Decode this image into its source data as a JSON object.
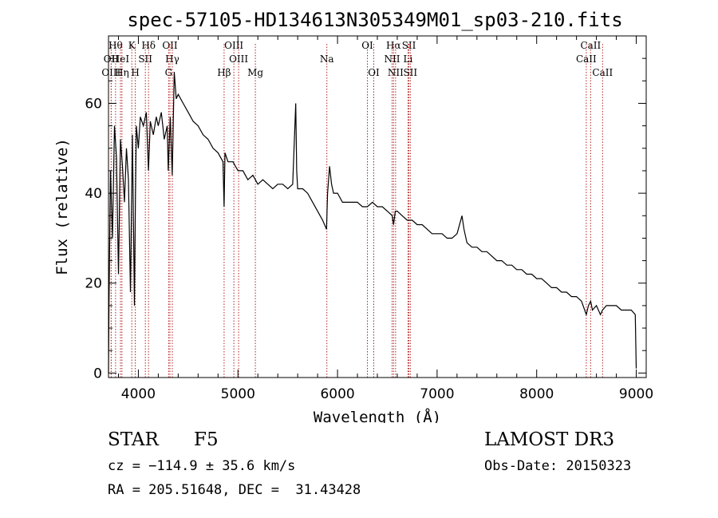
{
  "chart_data": {
    "type": "line",
    "title": "spec-57105-HD134613N305349M01_sp03-210.fits",
    "xlabel": "Wavelength (Å)",
    "ylabel": "Flux (relative)",
    "xlim": [
      3700,
      9100
    ],
    "ylim": [
      -1,
      75
    ],
    "xticks": [
      4000,
      5000,
      6000,
      7000,
      8000,
      9000
    ],
    "yticks": [
      0,
      20,
      40,
      60
    ],
    "series": [
      {
        "name": "flux",
        "x": [
          3700,
          3705,
          3720,
          3740,
          3760,
          3780,
          3800,
          3820,
          3840,
          3860,
          3880,
          3900,
          3920,
          3940,
          3960,
          3970,
          3980,
          4000,
          4020,
          4050,
          4080,
          4101,
          4120,
          4150,
          4180,
          4200,
          4230,
          4260,
          4290,
          4300,
          4320,
          4340,
          4360,
          4380,
          4400,
          4450,
          4500,
          4550,
          4600,
          4650,
          4700,
          4750,
          4800,
          4850,
          4861,
          4870,
          4900,
          4950,
          5000,
          5050,
          5100,
          5150,
          5200,
          5250,
          5300,
          5350,
          5400,
          5450,
          5500,
          5550,
          5580,
          5590,
          5600,
          5650,
          5700,
          5750,
          5800,
          5850,
          5890,
          5900,
          5920,
          5940,
          5960,
          6000,
          6050,
          6100,
          6150,
          6200,
          6250,
          6300,
          6350,
          6400,
          6450,
          6500,
          6550,
          6563,
          6580,
          6600,
          6650,
          6700,
          6750,
          6800,
          6850,
          6900,
          6950,
          7000,
          7050,
          7100,
          7150,
          7200,
          7250,
          7270,
          7300,
          7350,
          7400,
          7450,
          7500,
          7550,
          7600,
          7650,
          7700,
          7750,
          7800,
          7850,
          7900,
          7950,
          8000,
          8050,
          8100,
          8150,
          8200,
          8250,
          8300,
          8350,
          8400,
          8450,
          8498,
          8520,
          8542,
          8560,
          8600,
          8640,
          8662,
          8700,
          8750,
          8800,
          8850,
          8900,
          8950,
          8990,
          9000
        ],
        "y": [
          0,
          15,
          45,
          30,
          55,
          48,
          22,
          52,
          46,
          38,
          50,
          43,
          18,
          53,
          15,
          38,
          55,
          50,
          57,
          55,
          58,
          45,
          56,
          53,
          57,
          55,
          58,
          52,
          55,
          45,
          57,
          44,
          67,
          61,
          62,
          60,
          58,
          56,
          55,
          53,
          52,
          50,
          49,
          47,
          37,
          49,
          47,
          47,
          45,
          45,
          43,
          44,
          42,
          43,
          42,
          41,
          42,
          42,
          41,
          42,
          60,
          45,
          41,
          41,
          40,
          38,
          36,
          34,
          32,
          40,
          46,
          42,
          40,
          40,
          38,
          38,
          38,
          38,
          37,
          37,
          38,
          37,
          37,
          36,
          35,
          33,
          36,
          36,
          35,
          34,
          34,
          33,
          33,
          32,
          31,
          31,
          31,
          30,
          30,
          31,
          35,
          32,
          29,
          28,
          28,
          27,
          27,
          26,
          25,
          25,
          24,
          24,
          23,
          23,
          22,
          22,
          21,
          21,
          20,
          19,
          19,
          18,
          18,
          17,
          17,
          16,
          13,
          15,
          16,
          14,
          15,
          13,
          14,
          15,
          15,
          15,
          14,
          14,
          14,
          13,
          1
        ]
      }
    ],
    "line_marks": [
      {
        "label": "OII",
        "x": 3727,
        "row": 2
      },
      {
        "label": "OIII",
        "x": 3727,
        "row": 3
      },
      {
        "label": "Hθ",
        "x": 3771,
        "row": 1
      },
      {
        "label": "HeI",
        "x": 3820,
        "row": 2
      },
      {
        "label": "Hη",
        "x": 3835,
        "row": 3
      },
      {
        "label": "K",
        "x": 3934,
        "row": 1
      },
      {
        "label": "H",
        "x": 3969,
        "row": 3
      },
      {
        "label": "Hδ",
        "x": 4102,
        "row": 1
      },
      {
        "label": "SII",
        "x": 4070,
        "row": 2
      },
      {
        "label": "OII",
        "x": 4317,
        "row": 1
      },
      {
        "label": "Hγ",
        "x": 4341,
        "row": 2
      },
      {
        "label": "G",
        "x": 4304,
        "row": 3
      },
      {
        "label": "Hβ",
        "x": 4861,
        "row": 3
      },
      {
        "label": "OIII",
        "x": 4959,
        "row": 1
      },
      {
        "label": "OIII",
        "x": 5007,
        "row": 2
      },
      {
        "label": "Mg",
        "x": 5175,
        "row": 3
      },
      {
        "label": "Na",
        "x": 5893,
        "row": 2
      },
      {
        "label": "OI",
        "x": 6300,
        "row": 1
      },
      {
        "label": "OI",
        "x": 6364,
        "row": 3
      },
      {
        "label": "Hα",
        "x": 6563,
        "row": 1
      },
      {
        "label": "NII",
        "x": 6548,
        "row": 2
      },
      {
        "label": "NII",
        "x": 6583,
        "row": 3
      },
      {
        "label": "SII",
        "x": 6717,
        "row": 1
      },
      {
        "label": "Li",
        "x": 6708,
        "row": 2
      },
      {
        "label": "SII",
        "x": 6731,
        "row": 3
      },
      {
        "label": "CaII",
        "x": 8542,
        "row": 1
      },
      {
        "label": "CaII",
        "x": 8498,
        "row": 2
      },
      {
        "label": "CaII",
        "x": 8662,
        "row": 3
      }
    ],
    "colors": {
      "curve": "#000000",
      "marker_line": "#b22222"
    }
  },
  "info": {
    "object_type": "STAR",
    "spectral_class": "F5",
    "survey": "LAMOST DR3",
    "cz": "cz = −114.9 ± 35.6 km/s",
    "obs_date": "Obs-Date: 20150323",
    "coords": "RA = 205.51648, DEC =  31.43428"
  }
}
